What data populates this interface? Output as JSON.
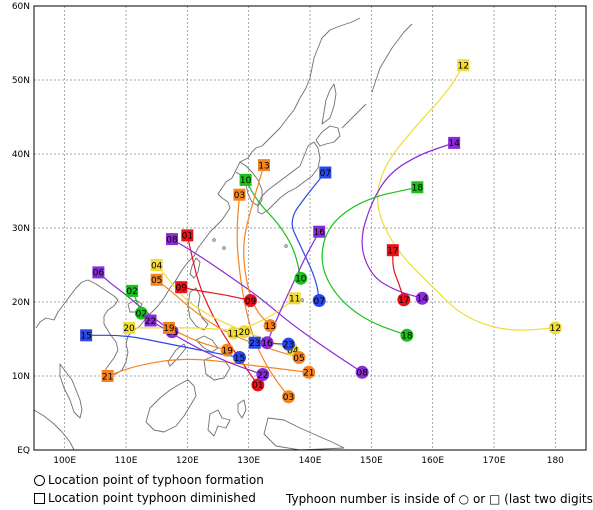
{
  "map": {
    "lat_labels": [
      "60N",
      "50N",
      "40N",
      "30N",
      "20N",
      "10N",
      "EQ"
    ],
    "lon_labels": [
      "100E",
      "110E",
      "120E",
      "130E",
      "140E",
      "150E",
      "160E",
      "170E",
      "180"
    ],
    "lon_range": [
      95,
      185
    ],
    "lat_range": [
      0,
      60
    ]
  },
  "legend": {
    "formation_symbol_text": "○",
    "formation_label": "Location point of typhoon formation",
    "diminished_symbol_text": "□",
    "diminished_label": "Location point typhoon diminished",
    "note": "Typhoon number is inside of ○ or □ (last two digits)"
  },
  "colors": {
    "red": "#e8121a",
    "orange": "#f5841f",
    "yellow": "#f1db37",
    "green": "#19c21a",
    "blue": "#2a48ea",
    "purple": "#8a2bd8",
    "land": "#6e6e6e",
    "grid": "#888888"
  },
  "tracks": [
    {
      "id": "01",
      "color": "red",
      "start": [
        131.5,
        8.8
      ],
      "end": [
        120.0,
        29.0
      ],
      "path": [
        [
          131.5,
          8.8
        ],
        [
          127.5,
          13.5
        ],
        [
          124.5,
          17.5
        ],
        [
          122.0,
          22.0
        ],
        [
          120.8,
          26.0
        ],
        [
          120.0,
          29.0
        ]
      ]
    },
    {
      "id": "02",
      "color": "green",
      "start": [
        112.5,
        18.5
      ],
      "end": [
        111.0,
        21.5
      ],
      "path": [
        [
          112.5,
          18.5
        ],
        [
          111.8,
          20.0
        ],
        [
          111.0,
          21.5
        ]
      ]
    },
    {
      "id": "03",
      "color": "orange",
      "start": [
        136.5,
        7.2
      ],
      "end": [
        128.5,
        34.5
      ],
      "path": [
        [
          136.5,
          7.2
        ],
        [
          133.5,
          10.5
        ],
        [
          131.0,
          14.5
        ],
        [
          129.5,
          19.0
        ],
        [
          128.5,
          24.0
        ],
        [
          128.0,
          29.0
        ],
        [
          128.5,
          34.5
        ]
      ]
    },
    {
      "id": "04",
      "color": "yellow",
      "start": [
        137.2,
        13.5
      ],
      "end": [
        115.0,
        25.0
      ],
      "path": [
        [
          137.2,
          13.5
        ],
        [
          131.0,
          15.5
        ],
        [
          125.0,
          17.5
        ],
        [
          120.0,
          20.0
        ],
        [
          117.0,
          23.0
        ],
        [
          115.0,
          25.0
        ]
      ]
    },
    {
      "id": "05",
      "color": "orange",
      "start": [
        138.2,
        12.5
      ],
      "end": [
        115.0,
        23.0
      ],
      "path": [
        [
          138.2,
          12.5
        ],
        [
          132.0,
          14.0
        ],
        [
          126.0,
          16.0
        ],
        [
          121.5,
          18.5
        ],
        [
          118.0,
          21.0
        ],
        [
          115.0,
          23.0
        ]
      ]
    },
    {
      "id": "06",
      "color": "purple",
      "start": [
        117.5,
        16.0
      ],
      "end": [
        105.5,
        24.0
      ],
      "path": [
        [
          117.5,
          16.0
        ],
        [
          113.5,
          18.5
        ],
        [
          110.0,
          21.0
        ],
        [
          107.5,
          22.5
        ],
        [
          105.5,
          24.0
        ]
      ]
    },
    {
      "id": "07",
      "color": "blue",
      "start": [
        141.5,
        20.2
      ],
      "end": [
        142.5,
        37.5
      ],
      "path": [
        [
          141.5,
          20.2
        ],
        [
          141.0,
          23.0
        ],
        [
          138.5,
          27.5
        ],
        [
          136.5,
          31.0
        ],
        [
          139.5,
          34.5
        ],
        [
          142.5,
          37.5
        ]
      ]
    },
    {
      "id": "08",
      "color": "purple",
      "start": [
        148.5,
        10.5
      ],
      "end": [
        117.5,
        28.5
      ],
      "path": [
        [
          148.5,
          10.5
        ],
        [
          143.0,
          13.5
        ],
        [
          137.0,
          17.0
        ],
        [
          132.0,
          20.5
        ],
        [
          126.0,
          24.0
        ],
        [
          121.5,
          26.5
        ],
        [
          117.5,
          28.5
        ]
      ]
    },
    {
      "id": "09",
      "color": "red",
      "start": [
        130.3,
        20.2
      ],
      "end": [
        119.0,
        22.0
      ],
      "path": [
        [
          130.3,
          20.2
        ],
        [
          126.0,
          21.0
        ],
        [
          122.0,
          21.5
        ],
        [
          119.0,
          22.0
        ]
      ]
    },
    {
      "id": "10",
      "color": "green",
      "start": [
        138.5,
        23.2
      ],
      "end": [
        129.5,
        36.5
      ],
      "path": [
        [
          138.5,
          23.2
        ],
        [
          137.5,
          27.0
        ],
        [
          135.0,
          30.5
        ],
        [
          131.5,
          33.5
        ],
        [
          129.5,
          36.5
        ]
      ]
    },
    {
      "id": "11",
      "color": "yellow",
      "start": [
        127.5,
        15.8
      ],
      "end": [
        137.5,
        20.5
      ],
      "path": [
        [
          127.5,
          15.8
        ],
        [
          131.0,
          17.0
        ],
        [
          134.5,
          18.5
        ],
        [
          137.5,
          20.5
        ]
      ]
    },
    {
      "id": "12",
      "color": "yellow",
      "start": [
        180.0,
        16.5
      ],
      "end": [
        165.0,
        52.0
      ],
      "path": [
        [
          180.0,
          16.5
        ],
        [
          172.0,
          16.0
        ],
        [
          165.0,
          18.0
        ],
        [
          160.0,
          22.0
        ],
        [
          154.0,
          27.0
        ],
        [
          150.5,
          33.0
        ],
        [
          152.0,
          38.5
        ],
        [
          157.5,
          44.0
        ],
        [
          162.5,
          48.5
        ],
        [
          165.0,
          52.0
        ]
      ]
    },
    {
      "id": "13",
      "color": "orange",
      "start": [
        133.5,
        16.8
      ],
      "end": [
        132.5,
        38.5
      ],
      "path": [
        [
          133.5,
          16.8
        ],
        [
          131.0,
          19.0
        ],
        [
          129.5,
          23.0
        ],
        [
          129.0,
          28.0
        ],
        [
          130.5,
          33.0
        ],
        [
          132.5,
          38.5
        ]
      ]
    },
    {
      "id": "14",
      "color": "purple",
      "start": [
        158.3,
        20.5
      ],
      "end": [
        163.5,
        41.5
      ],
      "path": [
        [
          158.3,
          20.5
        ],
        [
          154.0,
          21.5
        ],
        [
          150.0,
          23.5
        ],
        [
          148.0,
          28.0
        ],
        [
          150.0,
          33.5
        ],
        [
          153.0,
          37.5
        ],
        [
          158.0,
          40.0
        ],
        [
          163.5,
          41.5
        ]
      ]
    },
    {
      "id": "15",
      "color": "blue",
      "start": [
        128.5,
        12.5
      ],
      "end": [
        103.5,
        15.5
      ],
      "path": [
        [
          128.5,
          12.5
        ],
        [
          122.0,
          13.5
        ],
        [
          116.0,
          14.5
        ],
        [
          110.0,
          15.5
        ],
        [
          103.5,
          15.5
        ]
      ]
    },
    {
      "id": "16",
      "color": "purple",
      "start": [
        133.0,
        14.5
      ],
      "end": [
        141.5,
        29.5
      ],
      "path": [
        [
          133.0,
          14.5
        ],
        [
          135.0,
          18.5
        ],
        [
          137.5,
          23.0
        ],
        [
          139.5,
          26.5
        ],
        [
          141.5,
          29.5
        ]
      ]
    },
    {
      "id": "17",
      "color": "red",
      "start": [
        155.3,
        20.3
      ],
      "end": [
        153.5,
        27.0
      ],
      "path": [
        [
          155.3,
          20.3
        ],
        [
          154.5,
          22.5
        ],
        [
          153.5,
          24.5
        ],
        [
          153.5,
          27.0
        ]
      ]
    },
    {
      "id": "18",
      "color": "green",
      "start": [
        155.8,
        15.5
      ],
      "end": [
        157.5,
        35.5
      ],
      "path": [
        [
          155.8,
          15.5
        ],
        [
          149.0,
          17.5
        ],
        [
          144.0,
          21.0
        ],
        [
          141.5,
          25.5
        ],
        [
          143.0,
          30.5
        ],
        [
          149.0,
          34.0
        ],
        [
          157.5,
          35.5
        ]
      ]
    },
    {
      "id": "19",
      "color": "orange",
      "start": [
        126.5,
        13.5
      ],
      "end": [
        117.0,
        16.5
      ],
      "path": [
        [
          126.5,
          13.5
        ],
        [
          122.0,
          14.5
        ],
        [
          117.0,
          16.5
        ]
      ]
    },
    {
      "id": "20",
      "color": "yellow",
      "start": [
        129.3,
        16.0
      ],
      "end": [
        110.5,
        16.5
      ],
      "path": [
        [
          129.3,
          16.0
        ],
        [
          123.0,
          16.5
        ],
        [
          116.0,
          16.5
        ],
        [
          110.5,
          16.5
        ]
      ]
    },
    {
      "id": "21",
      "color": "orange",
      "start": [
        139.8,
        10.5
      ],
      "end": [
        107.0,
        10.0
      ],
      "path": [
        [
          139.8,
          10.5
        ],
        [
          130.0,
          11.5
        ],
        [
          120.0,
          12.5
        ],
        [
          112.0,
          11.5
        ],
        [
          107.0,
          10.0
        ]
      ]
    },
    {
      "id": "22",
      "color": "purple",
      "start": [
        132.3,
        10.2
      ],
      "end": [
        114.0,
        17.5
      ],
      "path": [
        [
          132.3,
          10.2
        ],
        [
          126.0,
          12.0
        ],
        [
          120.0,
          14.5
        ],
        [
          114.0,
          17.5
        ]
      ]
    },
    {
      "id": "23",
      "color": "blue",
      "start": [
        136.5,
        14.3
      ],
      "end": [
        131.0,
        14.5
      ],
      "path": [
        [
          136.5,
          14.3
        ],
        [
          133.5,
          14.4
        ],
        [
          131.0,
          14.5
        ]
      ]
    }
  ]
}
